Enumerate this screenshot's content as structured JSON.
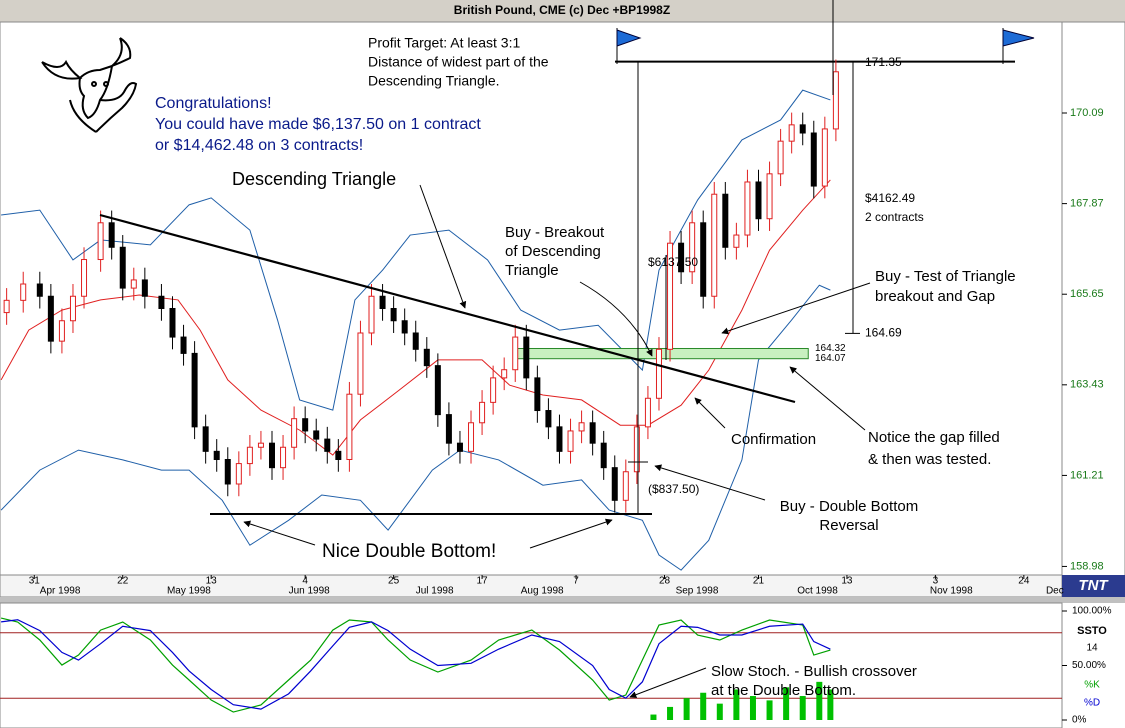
{
  "chart_data": {
    "type": "candlestick",
    "title": "British Pound, CME (c) Dec +BP1998Z",
    "logo": "TNT",
    "xlim": [
      -6.2,
      185.9
    ],
    "ylim": [
      158.77,
      172.32
    ],
    "yticks": [
      170.09,
      167.87,
      165.65,
      163.43,
      161.21,
      158.98
    ],
    "xticks": [
      {
        "value": 0,
        "label": "31"
      },
      {
        "value": 16,
        "label": "22"
      },
      {
        "value": 32,
        "label": "13"
      },
      {
        "value": 49,
        "label": "4"
      },
      {
        "value": 65,
        "label": "25"
      },
      {
        "value": 81,
        "label": "17"
      },
      {
        "value": 98,
        "label": "7"
      },
      {
        "value": 114,
        "label": "28"
      },
      {
        "value": 131,
        "label": "21"
      },
      {
        "value": 147,
        "label": "13"
      },
      {
        "value": 163,
        "label": "3"
      },
      {
        "value": 179,
        "label": "24"
      }
    ],
    "month_ticks": [
      {
        "value": 1,
        "label": "Apr 1998"
      },
      {
        "value": 24,
        "label": "May 1998"
      },
      {
        "value": 46,
        "label": "Jun 1998"
      },
      {
        "value": 69,
        "label": "Jul 1998"
      },
      {
        "value": 88,
        "label": "Aug 1998"
      },
      {
        "value": 116,
        "label": "Sep 1998"
      },
      {
        "value": 138,
        "label": "Oct 1998"
      },
      {
        "value": 162,
        "label": "Nov 1998"
      },
      {
        "value": 183,
        "label": "Dec"
      }
    ],
    "candles": {
      "x": [
        -5,
        -2,
        1,
        3,
        5,
        7,
        9,
        12,
        14,
        16,
        18,
        20,
        23,
        25,
        27,
        29,
        31,
        33,
        35,
        37,
        39,
        41,
        43,
        45,
        47,
        49,
        51,
        53,
        55,
        57,
        59,
        61,
        63,
        65,
        67,
        69,
        71,
        73,
        75,
        77,
        79,
        81,
        83,
        85,
        87,
        89,
        91,
        93,
        95,
        97,
        99,
        101,
        103,
        105,
        107,
        109,
        111,
        113,
        115,
        117,
        119,
        121,
        123,
        125,
        127,
        129,
        131,
        133,
        135,
        137,
        139,
        141,
        143,
        145
      ],
      "open": [
        165.2,
        165.5,
        165.9,
        165.6,
        164.5,
        165.0,
        165.6,
        166.5,
        167.4,
        166.8,
        165.8,
        166.0,
        165.6,
        165.3,
        164.6,
        164.2,
        162.4,
        161.8,
        161.6,
        161.0,
        161.5,
        161.9,
        162.0,
        161.4,
        161.9,
        162.6,
        162.3,
        162.1,
        161.8,
        161.6,
        163.2,
        164.7,
        165.6,
        165.3,
        165.0,
        164.7,
        164.3,
        163.9,
        162.7,
        162.0,
        161.8,
        162.5,
        163.0,
        163.6,
        163.8,
        164.6,
        163.6,
        162.8,
        162.4,
        161.8,
        162.3,
        162.5,
        162.0,
        161.4,
        160.6,
        161.3,
        162.4,
        163.1,
        164.3,
        166.9,
        166.2,
        167.4,
        165.6,
        168.1,
        166.8,
        167.1,
        168.4,
        167.5,
        168.6,
        169.4,
        169.8,
        169.6,
        168.3,
        169.7
      ],
      "high": [
        165.8,
        166.2,
        166.2,
        165.9,
        165.3,
        165.9,
        166.8,
        167.7,
        167.7,
        167.1,
        166.3,
        166.3,
        165.9,
        165.6,
        164.9,
        164.5,
        162.7,
        162.1,
        161.9,
        161.8,
        162.2,
        162.3,
        162.3,
        162.2,
        162.9,
        162.9,
        162.6,
        162.4,
        162.1,
        163.5,
        165.0,
        165.9,
        165.9,
        165.6,
        165.3,
        165.0,
        164.6,
        164.2,
        163.0,
        162.3,
        162.8,
        163.3,
        163.9,
        164.1,
        164.9,
        164.9,
        163.9,
        163.1,
        162.7,
        162.6,
        162.8,
        162.8,
        162.3,
        161.7,
        161.6,
        162.7,
        163.4,
        164.6,
        167.2,
        167.2,
        167.7,
        167.7,
        168.4,
        168.4,
        167.4,
        168.7,
        168.7,
        168.9,
        169.7,
        170.1,
        170.1,
        169.9,
        170.0,
        171.4
      ],
      "low": [
        164.9,
        165.2,
        165.3,
        164.2,
        164.2,
        164.7,
        165.3,
        166.2,
        166.5,
        165.5,
        165.5,
        165.3,
        165.0,
        164.3,
        163.9,
        162.1,
        161.5,
        161.3,
        160.7,
        160.7,
        161.2,
        161.6,
        161.1,
        161.1,
        161.6,
        162.0,
        161.8,
        161.5,
        161.3,
        161.3,
        162.9,
        164.4,
        165.0,
        164.7,
        164.4,
        164.0,
        163.6,
        162.4,
        161.7,
        161.5,
        161.5,
        162.2,
        162.7,
        163.3,
        163.5,
        163.3,
        162.5,
        162.1,
        161.5,
        161.5,
        162.0,
        161.7,
        161.1,
        160.3,
        160.3,
        161.0,
        162.1,
        162.8,
        164.0,
        165.9,
        165.9,
        165.3,
        165.3,
        166.5,
        166.5,
        166.8,
        167.2,
        167.2,
        168.3,
        169.1,
        169.3,
        168.0,
        168.0,
        169.4
      ],
      "close": [
        165.5,
        165.9,
        165.6,
        164.5,
        165.0,
        165.6,
        166.5,
        167.4,
        166.8,
        165.8,
        166.0,
        165.6,
        165.3,
        164.6,
        164.2,
        162.4,
        161.8,
        161.6,
        161.0,
        161.5,
        161.9,
        162.0,
        161.4,
        161.9,
        162.6,
        162.3,
        162.1,
        161.8,
        161.6,
        163.2,
        164.7,
        165.6,
        165.3,
        165.0,
        164.7,
        164.3,
        163.9,
        162.7,
        162.0,
        161.8,
        162.5,
        163.0,
        163.6,
        163.8,
        164.6,
        163.6,
        162.8,
        162.4,
        161.8,
        162.3,
        162.5,
        162.0,
        161.4,
        160.6,
        161.3,
        162.4,
        163.1,
        164.3,
        166.9,
        166.2,
        167.4,
        165.6,
        168.1,
        166.8,
        167.1,
        168.4,
        167.5,
        168.6,
        169.4,
        169.8,
        169.6,
        168.3,
        169.7,
        171.1
      ],
      "up_color": "#e02020",
      "down_color": "#000000"
    },
    "overlays": [
      {
        "color": "#1f5fa8",
        "x": [
          -6,
          1,
          7,
          12,
          21,
          28,
          32,
          39,
          44,
          48,
          54,
          58,
          63,
          68,
          75,
          82,
          88,
          95,
          102,
          110,
          113,
          120,
          128,
          135,
          139,
          144
        ],
        "values": [
          167.59,
          167.71,
          166.49,
          166.98,
          166.86,
          167.84,
          168.01,
          167.22,
          165.02,
          163.06,
          162.81,
          165.51,
          166.24,
          167.1,
          167.22,
          166.49,
          165.26,
          164.77,
          164.89,
          163.79,
          166.24,
          167.96,
          169.43,
          169.92,
          170.65,
          170.41
        ]
      },
      {
        "color": "#1f5fa8",
        "x": [
          -6,
          1,
          8,
          16,
          23,
          28,
          34,
          39,
          46,
          52,
          59,
          64,
          72,
          77,
          84,
          92,
          99,
          104,
          110,
          113,
          117,
          122,
          128,
          131,
          137,
          142,
          144
        ],
        "values": [
          160.36,
          161.34,
          161.83,
          161.59,
          161.34,
          161.34,
          160.6,
          159.5,
          160.11,
          160.73,
          160.6,
          159.87,
          161.34,
          161.83,
          161.59,
          160.97,
          161.1,
          160.36,
          160.11,
          159.26,
          158.89,
          159.62,
          161.59,
          164.04,
          165.02,
          165.87,
          165.75
        ]
      },
      {
        "color": "#e02020",
        "x": [
          -6,
          -1,
          5,
          12,
          19,
          26,
          30,
          35,
          41,
          48,
          54,
          59,
          66,
          73,
          81,
          86,
          92,
          99,
          106,
          111,
          117,
          122,
          128,
          133,
          139,
          144
        ],
        "values": [
          163.55,
          164.77,
          165.26,
          165.51,
          165.63,
          165.51,
          164.77,
          163.55,
          162.81,
          162.32,
          161.71,
          162.57,
          163.3,
          164.04,
          164.04,
          163.42,
          163.18,
          163.06,
          162.44,
          162.44,
          162.93,
          163.79,
          165.26,
          166.73,
          167.71,
          168.45
        ]
      }
    ],
    "target_level": 171.35,
    "stop_level": 164.69,
    "gap_zone": [
      164.32,
      164.07
    ],
    "annotations": [
      [
        "Profit Target: At least 3:1",
        "Distance of widest part of the",
        "Descending Triangle."
      ],
      [
        "Congratulations!",
        "You could have made $6,137.50 on 1 contract",
        "or $14,462.48 on 3 contracts!"
      ],
      [
        "Descending Triangle"
      ],
      [
        "Buy - Breakout",
        "of Descending",
        "Triangle"
      ],
      [
        "$6137.50"
      ],
      [
        "$4162.49",
        "2 contracts"
      ],
      [
        "Buy - Test of Triangle",
        "breakout and Gap"
      ],
      [
        "Confirmation"
      ],
      [
        "Notice the gap filled",
        "& then was tested."
      ],
      [
        "($837.50)"
      ],
      [
        "Buy - Double Bottom",
        "Reversal"
      ],
      [
        "Nice Double Bottom!"
      ],
      [
        "Slow Stoch. - Bullish crossover",
        "at the Double Bottom."
      ]
    ],
    "stoch": {
      "title": "SSTO",
      "period": "14",
      "ylim": [
        0,
        100
      ],
      "yticks": [
        {
          "value": 100,
          "label": "100.00%"
        },
        {
          "value": 50,
          "label": "50.00%"
        },
        {
          "value": 0,
          "label": "0%"
        }
      ],
      "levels": [
        80,
        20
      ],
      "series": [
        {
          "name": "%K",
          "color": "#00a000",
          "x": [
            -6,
            -3,
            1,
            5,
            8,
            12,
            16,
            21,
            25,
            28,
            32,
            36,
            41,
            46,
            50,
            54,
            57,
            61,
            64,
            68,
            73,
            79,
            84,
            90,
            95,
            101,
            104,
            107,
            110,
            113,
            117,
            120,
            124,
            128,
            133,
            139,
            141,
            144
          ],
          "values": [
            93.5,
            89.9,
            73.4,
            50.4,
            59.6,
            82.5,
            89.9,
            73.4,
            50.4,
            36.7,
            18.3,
            7.3,
            13.8,
            36.7,
            55.0,
            82.5,
            91.7,
            89.9,
            73.4,
            55.0,
            44.0,
            55.0,
            73.4,
            82.5,
            64.2,
            36.7,
            18.3,
            22.9,
            55.0,
            87.1,
            91.7,
            77.9,
            73.4,
            82.5,
            91.7,
            87.1,
            59.6,
            64.2
          ]
        },
        {
          "name": "%D",
          "color": "#0000d0",
          "x": [
            -6,
            -3,
            1,
            5,
            8,
            12,
            16,
            21,
            25,
            28,
            32,
            36,
            41,
            46,
            50,
            54,
            57,
            61,
            64,
            68,
            73,
            79,
            84,
            90,
            95,
            101,
            104,
            107,
            110,
            113,
            117,
            120,
            124,
            128,
            133,
            139,
            141,
            144
          ],
          "values": [
            90,
            92,
            82,
            62,
            55,
            70,
            86,
            82,
            62,
            45,
            28,
            14,
            10,
            24,
            45,
            68,
            85,
            90,
            82,
            65,
            50,
            52,
            65,
            78,
            72,
            50,
            28,
            20,
            35,
            70,
            86,
            85,
            78,
            78,
            86,
            88,
            72,
            65
          ]
        }
      ],
      "histogram": {
        "color": "#00c000",
        "x": [
          112,
          115,
          118,
          121,
          124,
          127,
          130,
          133,
          136,
          139,
          142,
          144
        ],
        "values": [
          5,
          12,
          20,
          25,
          15,
          28,
          22,
          18,
          30,
          22,
          35,
          28
        ]
      }
    }
  }
}
